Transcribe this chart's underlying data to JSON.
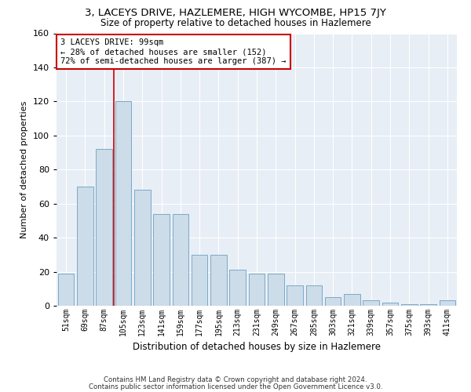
{
  "title": "3, LACEYS DRIVE, HAZLEMERE, HIGH WYCOMBE, HP15 7JY",
  "subtitle": "Size of property relative to detached houses in Hazlemere",
  "xlabel": "Distribution of detached houses by size in Hazlemere",
  "ylabel": "Number of detached properties",
  "categories": [
    "51sqm",
    "69sqm",
    "87sqm",
    "105sqm",
    "123sqm",
    "141sqm",
    "159sqm",
    "177sqm",
    "195sqm",
    "213sqm",
    "231sqm",
    "249sqm",
    "267sqm",
    "285sqm",
    "303sqm",
    "321sqm",
    "339sqm",
    "357sqm",
    "375sqm",
    "393sqm",
    "411sqm"
  ],
  "values": [
    19,
    70,
    92,
    120,
    68,
    54,
    54,
    30,
    30,
    21,
    19,
    19,
    12,
    12,
    5,
    7,
    3,
    2,
    1,
    1,
    3
  ],
  "bar_color": "#ccdce8",
  "bar_edge_color": "#7aaac8",
  "vline_x": 2.5,
  "vline_color": "#cc0000",
  "annotation_line1": "3 LACEYS DRIVE: 99sqm",
  "annotation_line2": "← 28% of detached houses are smaller (152)",
  "annotation_line3": "72% of semi-detached houses are larger (387) →",
  "annotation_box_color": "#cc0000",
  "ylim": [
    0,
    160
  ],
  "yticks": [
    0,
    20,
    40,
    60,
    80,
    100,
    120,
    140,
    160
  ],
  "background_color": "#e8eef5",
  "grid_color": "#ffffff",
  "title_fontsize": 9,
  "subtitle_fontsize": 8,
  "footer_line1": "Contains HM Land Registry data © Crown copyright and database right 2024.",
  "footer_line2": "Contains public sector information licensed under the Open Government Licence v3.0."
}
